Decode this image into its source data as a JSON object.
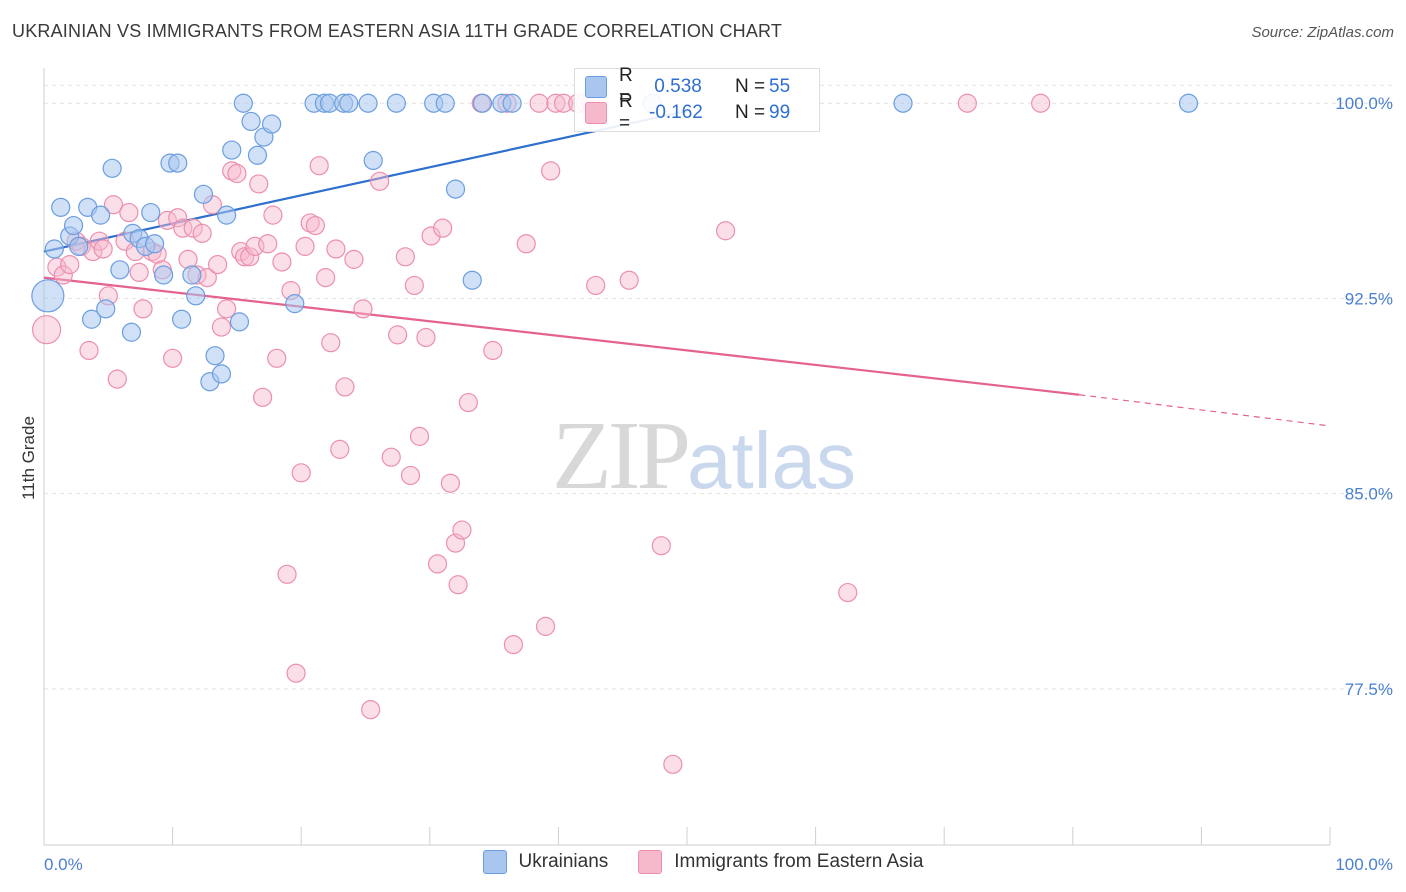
{
  "header": {
    "title": "UKRAINIAN VS IMMIGRANTS FROM EASTERN ASIA 11TH GRADE CORRELATION CHART",
    "source": "Source: ZipAtlas.com"
  },
  "watermark": {
    "zip": "ZIP",
    "atlas": "atlas"
  },
  "legend": {
    "rows": [
      {
        "r_label": "R =",
        "r_value": " 0.538",
        "n_label": "N =",
        "n_value": "55",
        "color": "#a9c6ef"
      },
      {
        "r_label": "R =",
        "r_value": "-0.162",
        "n_label": "N =",
        "n_value": "99",
        "color": "#f6b9cc"
      }
    ]
  },
  "bottom_legend": {
    "series1": "Ukrainians",
    "series2": "Immigrants from Eastern Asia"
  },
  "colors": {
    "blue_fill": "#a9c6ef",
    "blue_stroke": "#6b9ee0",
    "blue_line": "#2f6fce",
    "pink_fill": "#f6b9cc",
    "pink_stroke": "#ec8fae",
    "pink_line": "#e4628f"
  },
  "chart_data": {
    "type": "scatter",
    "title": "UKRAINIAN VS IMMIGRANTS FROM EASTERN ASIA 11TH GRADE CORRELATION CHART",
    "xlabel": "",
    "ylabel": "11th Grade",
    "xlim": [
      0,
      100
    ],
    "ylim": [
      71.5,
      101.2
    ],
    "x_tick_labels": [
      "0.0%",
      "100.0%"
    ],
    "y_ticks": [
      77.5,
      85.0,
      92.5,
      100.0
    ],
    "y_tick_labels": [
      "77.5%",
      "85.0%",
      "92.5%",
      "100.0%"
    ],
    "grid": true,
    "legend_position": "top-center",
    "series": [
      {
        "name": "Ukrainians",
        "r": 0.538,
        "n": 55,
        "trend": {
          "x": [
            0,
            50
          ],
          "y": [
            94.3,
            99.7
          ]
        },
        "points": [
          [
            0.3,
            92.6
          ],
          [
            0.8,
            94.4
          ],
          [
            1.3,
            96.0
          ],
          [
            2.0,
            94.9
          ],
          [
            2.3,
            95.3
          ],
          [
            2.7,
            94.5
          ],
          [
            3.4,
            96.0
          ],
          [
            3.7,
            91.7
          ],
          [
            4.4,
            95.7
          ],
          [
            4.8,
            92.1
          ],
          [
            5.3,
            97.5
          ],
          [
            5.9,
            93.6
          ],
          [
            6.8,
            91.2
          ],
          [
            6.9,
            95.0
          ],
          [
            7.4,
            94.8
          ],
          [
            7.9,
            94.5
          ],
          [
            8.3,
            95.8
          ],
          [
            8.6,
            94.6
          ],
          [
            9.3,
            93.4
          ],
          [
            9.8,
            97.7
          ],
          [
            10.4,
            97.7
          ],
          [
            10.7,
            91.7
          ],
          [
            11.5,
            93.4
          ],
          [
            11.8,
            92.6
          ],
          [
            12.4,
            96.5
          ],
          [
            12.9,
            89.3
          ],
          [
            13.3,
            90.3
          ],
          [
            13.8,
            89.6
          ],
          [
            14.2,
            95.7
          ],
          [
            14.6,
            98.2
          ],
          [
            15.2,
            91.6
          ],
          [
            15.5,
            100.0
          ],
          [
            16.1,
            99.3
          ],
          [
            16.6,
            98.0
          ],
          [
            17.1,
            98.7
          ],
          [
            17.7,
            99.2
          ],
          [
            19.5,
            92.3
          ],
          [
            21.0,
            100.0
          ],
          [
            21.8,
            100.0
          ],
          [
            22.2,
            100.0
          ],
          [
            23.3,
            100.0
          ],
          [
            23.7,
            100.0
          ],
          [
            25.2,
            100.0
          ],
          [
            25.6,
            97.8
          ],
          [
            27.4,
            100.0
          ],
          [
            30.3,
            100.0
          ],
          [
            31.2,
            100.0
          ],
          [
            32.0,
            96.7
          ],
          [
            33.3,
            93.2
          ],
          [
            34.1,
            100.0
          ],
          [
            35.6,
            100.0
          ],
          [
            36.4,
            100.0
          ],
          [
            47.3,
            100.0
          ],
          [
            66.8,
            100.0
          ],
          [
            89.0,
            100.0
          ]
        ]
      },
      {
        "name": "Immigrants from Eastern Asia",
        "r": -0.162,
        "n": 99,
        "trend": {
          "x": [
            0,
            80.5
          ],
          "y": [
            93.3,
            88.8
          ]
        },
        "trend_dashed": {
          "x": [
            80.5,
            100
          ],
          "y": [
            88.8,
            87.6
          ]
        },
        "points": [
          [
            0.2,
            91.3
          ],
          [
            1.0,
            93.7
          ],
          [
            1.5,
            93.4
          ],
          [
            2.0,
            93.8
          ],
          [
            2.5,
            94.7
          ],
          [
            2.9,
            94.5
          ],
          [
            3.5,
            90.5
          ],
          [
            3.8,
            94.3
          ],
          [
            4.3,
            94.7
          ],
          [
            4.6,
            94.4
          ],
          [
            5.0,
            92.6
          ],
          [
            5.4,
            96.1
          ],
          [
            5.7,
            89.4
          ],
          [
            6.3,
            94.7
          ],
          [
            6.6,
            95.8
          ],
          [
            7.1,
            94.3
          ],
          [
            7.4,
            93.5
          ],
          [
            7.7,
            92.1
          ],
          [
            8.4,
            94.3
          ],
          [
            8.8,
            94.2
          ],
          [
            9.2,
            93.6
          ],
          [
            9.6,
            95.5
          ],
          [
            10.0,
            90.2
          ],
          [
            10.4,
            95.6
          ],
          [
            10.8,
            95.2
          ],
          [
            11.2,
            94.0
          ],
          [
            11.6,
            95.2
          ],
          [
            11.9,
            93.4
          ],
          [
            12.3,
            95.0
          ],
          [
            12.7,
            93.3
          ],
          [
            13.1,
            96.1
          ],
          [
            13.5,
            93.8
          ],
          [
            13.8,
            91.4
          ],
          [
            14.2,
            92.1
          ],
          [
            14.6,
            97.4
          ],
          [
            15.0,
            97.3
          ],
          [
            15.3,
            94.3
          ],
          [
            15.6,
            94.1
          ],
          [
            16.0,
            94.1
          ],
          [
            16.4,
            94.5
          ],
          [
            16.7,
            96.9
          ],
          [
            17.0,
            88.7
          ],
          [
            17.4,
            94.6
          ],
          [
            17.8,
            95.7
          ],
          [
            18.1,
            90.2
          ],
          [
            18.5,
            93.9
          ],
          [
            18.9,
            81.9
          ],
          [
            19.2,
            92.8
          ],
          [
            19.6,
            78.1
          ],
          [
            20.0,
            85.8
          ],
          [
            20.3,
            94.5
          ],
          [
            20.7,
            95.4
          ],
          [
            21.1,
            95.3
          ],
          [
            21.4,
            97.6
          ],
          [
            21.9,
            93.3
          ],
          [
            22.3,
            90.8
          ],
          [
            22.7,
            94.4
          ],
          [
            23.0,
            86.7
          ],
          [
            23.4,
            89.1
          ],
          [
            24.1,
            94.0
          ],
          [
            24.8,
            92.1
          ],
          [
            25.4,
            76.7
          ],
          [
            26.1,
            97.0
          ],
          [
            27.0,
            86.4
          ],
          [
            27.5,
            91.1
          ],
          [
            28.1,
            94.1
          ],
          [
            28.5,
            85.7
          ],
          [
            28.8,
            93.0
          ],
          [
            29.2,
            87.2
          ],
          [
            29.7,
            91.0
          ],
          [
            30.1,
            94.9
          ],
          [
            30.6,
            82.3
          ],
          [
            31.0,
            95.2
          ],
          [
            31.6,
            85.4
          ],
          [
            32.0,
            83.1
          ],
          [
            32.2,
            81.5
          ],
          [
            32.5,
            83.6
          ],
          [
            33.0,
            88.5
          ],
          [
            34.0,
            100.0
          ],
          [
            34.9,
            90.5
          ],
          [
            36.0,
            100.0
          ],
          [
            36.5,
            79.2
          ],
          [
            37.5,
            94.6
          ],
          [
            38.5,
            100.0
          ],
          [
            39.0,
            79.9
          ],
          [
            39.4,
            97.4
          ],
          [
            39.8,
            100.0
          ],
          [
            40.4,
            100.0
          ],
          [
            41.5,
            100.0
          ],
          [
            42.1,
            100.0
          ],
          [
            42.5,
            100.0
          ],
          [
            42.9,
            93.0
          ],
          [
            45.5,
            93.2
          ],
          [
            48.0,
            83.0
          ],
          [
            48.9,
            74.6
          ],
          [
            53.0,
            95.1
          ],
          [
            62.5,
            81.2
          ],
          [
            71.8,
            100.0
          ],
          [
            77.5,
            100.0
          ]
        ]
      }
    ]
  }
}
